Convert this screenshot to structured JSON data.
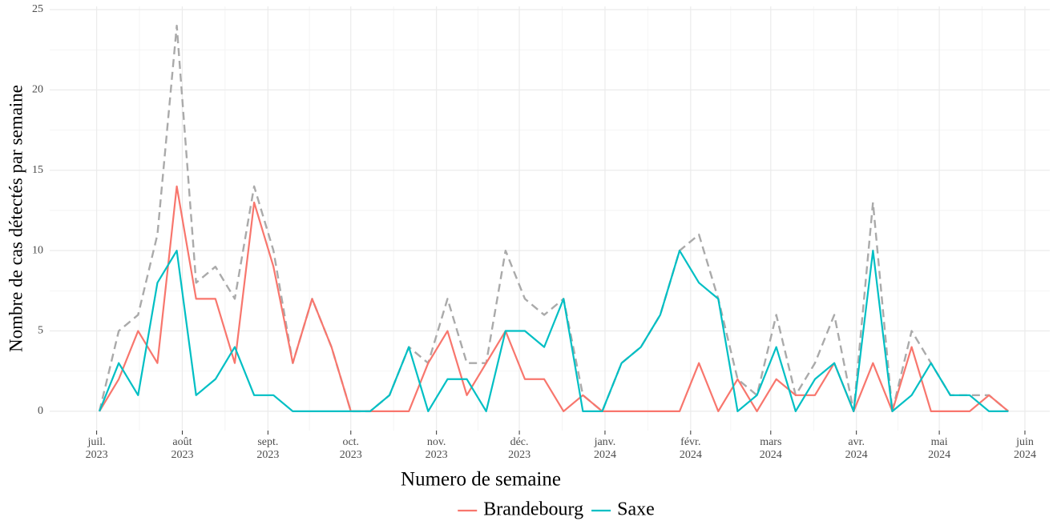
{
  "chart_data": {
    "type": "line",
    "x_label": "Numero de semaine",
    "y_label": "Nombre de cas détectés par semaine",
    "x": [
      "2023-07-02",
      "2023-07-09",
      "2023-07-16",
      "2023-07-23",
      "2023-07-30",
      "2023-08-06",
      "2023-08-13",
      "2023-08-20",
      "2023-08-27",
      "2023-09-03",
      "2023-09-10",
      "2023-09-17",
      "2023-09-24",
      "2023-10-01",
      "2023-10-08",
      "2023-10-15",
      "2023-10-22",
      "2023-10-29",
      "2023-11-05",
      "2023-11-12",
      "2023-11-19",
      "2023-11-26",
      "2023-12-03",
      "2023-12-10",
      "2023-12-17",
      "2023-12-24",
      "2023-12-31",
      "2024-01-07",
      "2024-01-14",
      "2024-01-21",
      "2024-01-28",
      "2024-02-04",
      "2024-02-11",
      "2024-02-18",
      "2024-02-25",
      "2024-03-03",
      "2024-03-10",
      "2024-03-17",
      "2024-03-24",
      "2024-03-31",
      "2024-04-07",
      "2024-04-14",
      "2024-04-21",
      "2024-04-28",
      "2024-05-05",
      "2024-05-12",
      "2024-05-19",
      "2024-05-26"
    ],
    "series": [
      {
        "color": "#aaaaaa",
        "dashed": true,
        "values": [
          0,
          5,
          6,
          11,
          24,
          8,
          9,
          7,
          14,
          10,
          3,
          7,
          4,
          0,
          0,
          1,
          4,
          3,
          7,
          3,
          3,
          10,
          7,
          6,
          7,
          1,
          0,
          3,
          4,
          6,
          10,
          11,
          7,
          2,
          1,
          6,
          1,
          3,
          6,
          0,
          13,
          0,
          5,
          3,
          1,
          1,
          1,
          0
        ]
      },
      {
        "name": "Brandebourg",
        "color": "#f8766d",
        "values": [
          0,
          2,
          5,
          3,
          14,
          7,
          7,
          3,
          13,
          9,
          3,
          7,
          4,
          0,
          0,
          0,
          0,
          3,
          5,
          1,
          3,
          5,
          2,
          2,
          0,
          1,
          0,
          0,
          0,
          0,
          0,
          3,
          0,
          2,
          0,
          2,
          1,
          1,
          3,
          0,
          3,
          0,
          4,
          0,
          0,
          0,
          1,
          0
        ]
      },
      {
        "name": "Saxe",
        "color": "#00bfc4",
        "values": [
          0,
          3,
          1,
          8,
          10,
          1,
          2,
          4,
          1,
          1,
          0,
          0,
          0,
          0,
          0,
          1,
          4,
          0,
          2,
          2,
          0,
          5,
          5,
          4,
          7,
          0,
          0,
          3,
          4,
          6,
          10,
          8,
          7,
          0,
          1,
          4,
          0,
          2,
          3,
          0,
          10,
          0,
          1,
          3,
          1,
          1,
          0,
          0
        ]
      }
    ],
    "xlim": [
      "2023-06-14",
      "2024-06-10"
    ],
    "xticks": [
      {
        "value": "2023-07-01",
        "label": "juil.\n2023"
      },
      {
        "value": "2023-08-01",
        "label": "août\n2023"
      },
      {
        "value": "2023-09-01",
        "label": "sept.\n2023"
      },
      {
        "value": "2023-10-01",
        "label": "oct.\n2023"
      },
      {
        "value": "2023-11-01",
        "label": "nov.\n2023"
      },
      {
        "value": "2023-12-01",
        "label": "déc.\n2023"
      },
      {
        "value": "2024-01-01",
        "label": "janv.\n2024"
      },
      {
        "value": "2024-02-01",
        "label": "févr.\n2024"
      },
      {
        "value": "2024-03-01",
        "label": "mars\n2024"
      },
      {
        "value": "2024-04-01",
        "label": "avr.\n2024"
      },
      {
        "value": "2024-05-01",
        "label": "mai\n2024"
      },
      {
        "value": "2024-06-01",
        "label": "juin\n2024"
      }
    ],
    "ylim": [
      -1.2,
      25.2
    ],
    "yticks": [
      0,
      5,
      10,
      15,
      20,
      25
    ],
    "grid": true,
    "legend": "bottom"
  }
}
